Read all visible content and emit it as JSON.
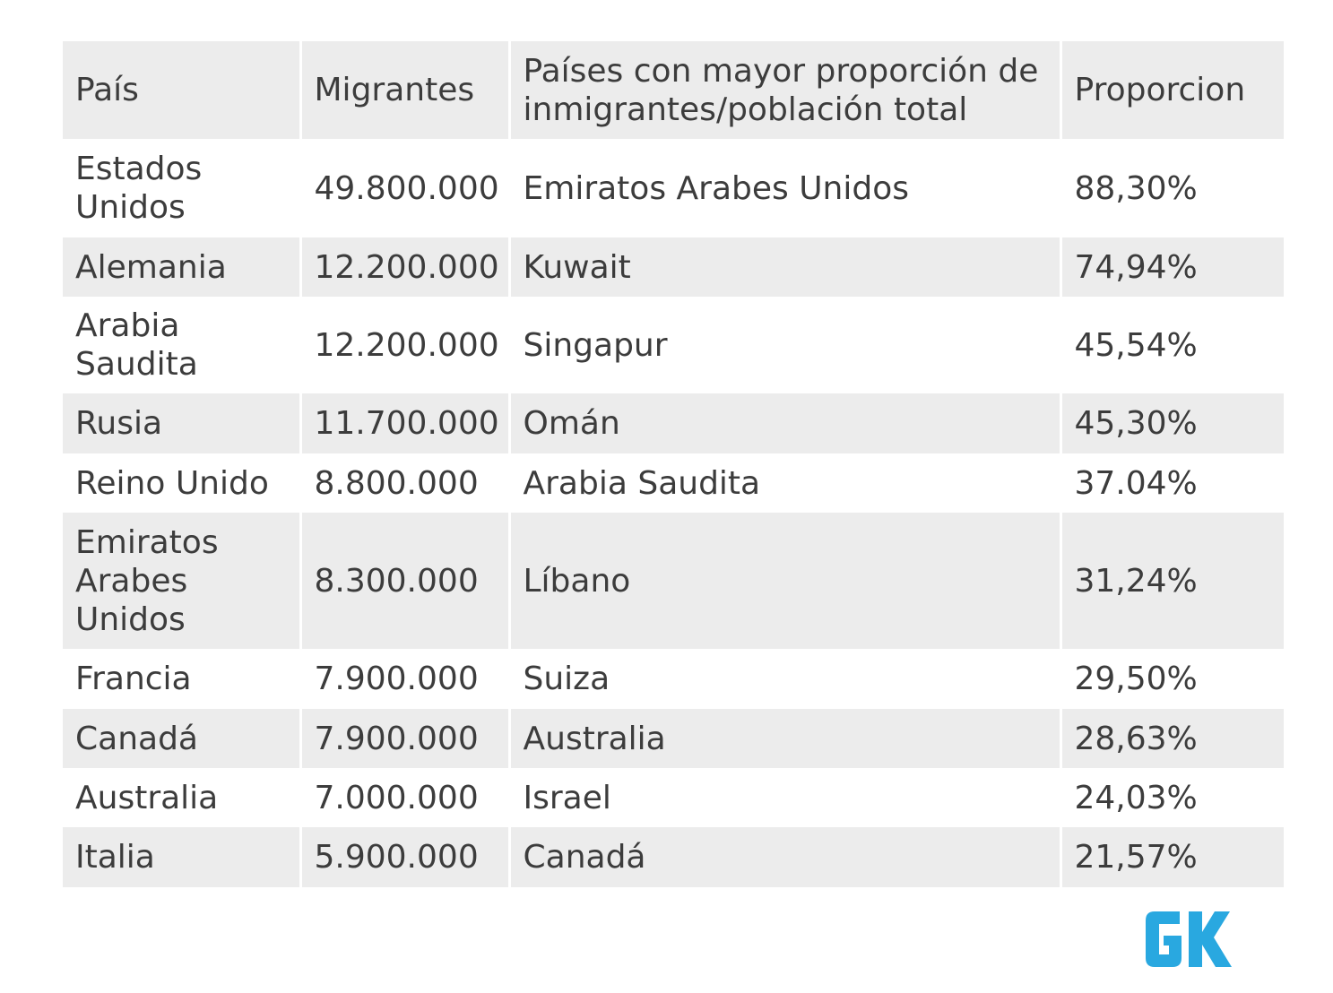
{
  "table": {
    "headers": [
      "País",
      "Migrantes",
      "Países con mayor proporción de inmigrantes/población total",
      "Proporcion"
    ],
    "rows": [
      [
        "Estados Unidos",
        "49.800.000",
        "Emiratos Arabes Unidos",
        "88,30%"
      ],
      [
        "Alemania",
        "12.200.000",
        "Kuwait",
        "74,94%"
      ],
      [
        "Arabia Saudita",
        "12.200.000",
        "Singapur",
        "45,54%"
      ],
      [
        "Rusia",
        "11.700.000",
        "Omán",
        "45,30%"
      ],
      [
        "Reino Unido",
        "8.800.000",
        "Arabia Saudita",
        "37.04%"
      ],
      [
        "Emiratos Arabes Unidos",
        "8.300.000",
        "Líbano",
        "31,24%"
      ],
      [
        "Francia",
        "7.900.000",
        "Suiza",
        "29,50%"
      ],
      [
        "Canadá",
        "7.900.000",
        "Australia",
        "28,63%"
      ],
      [
        "Australia",
        "7.000.000",
        "Israel",
        "24,03%"
      ],
      [
        "Italia",
        "5.900.000",
        "Canadá",
        "21,57%"
      ]
    ]
  },
  "logo": {
    "text": "GK",
    "color": "#29a8e0"
  },
  "colors": {
    "row_shade": "#ececec",
    "text": "#3c3c3c"
  }
}
